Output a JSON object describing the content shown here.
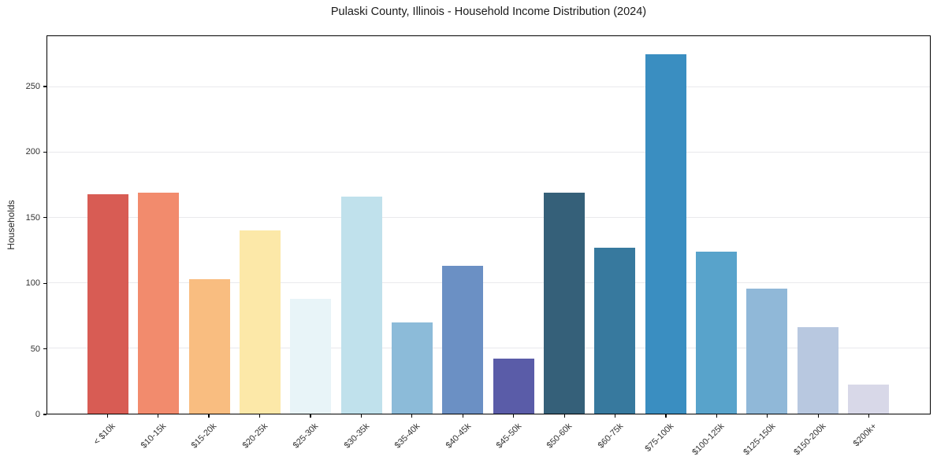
{
  "chart_data": {
    "type": "bar",
    "title": "Pulaski County, Illinois - Household Income Distribution (2024)",
    "xlabel": "",
    "ylabel": "Households",
    "categories": [
      "< $10k",
      "$10-15k",
      "$15-20k",
      "$20-25k",
      "$25-30k",
      "$30-35k",
      "$35-40k",
      "$40-45k",
      "$45-50k",
      "$50-60k",
      "$60-75k",
      "$75-100k",
      "$100-125k",
      "$125-150k",
      "$150-200k",
      "$200k+"
    ],
    "values": [
      168,
      169,
      103,
      140,
      88,
      166,
      70,
      113,
      42,
      169,
      127,
      275,
      124,
      96,
      66,
      22
    ],
    "bar_colors": [
      "#d85c54",
      "#f28b6d",
      "#f9bd80",
      "#fce8a8",
      "#e8f4f8",
      "#c0e1ec",
      "#8cbbd9",
      "#6b90c4",
      "#5a5ca8",
      "#356079",
      "#37799e",
      "#3a8ec1",
      "#58a3cb",
      "#90b8d8",
      "#b8c8e0",
      "#d8d8e8"
    ],
    "yticks": [
      0,
      50,
      100,
      150,
      200,
      250
    ],
    "ylim": [
      0,
      289
    ],
    "grid": "horizontal",
    "gridline_color": "#e9e9ec",
    "spine_color": "#000000",
    "tick_label_color": "#333333",
    "title_color": "#1a1a1a",
    "legend": "none",
    "background": "#ffffff"
  }
}
